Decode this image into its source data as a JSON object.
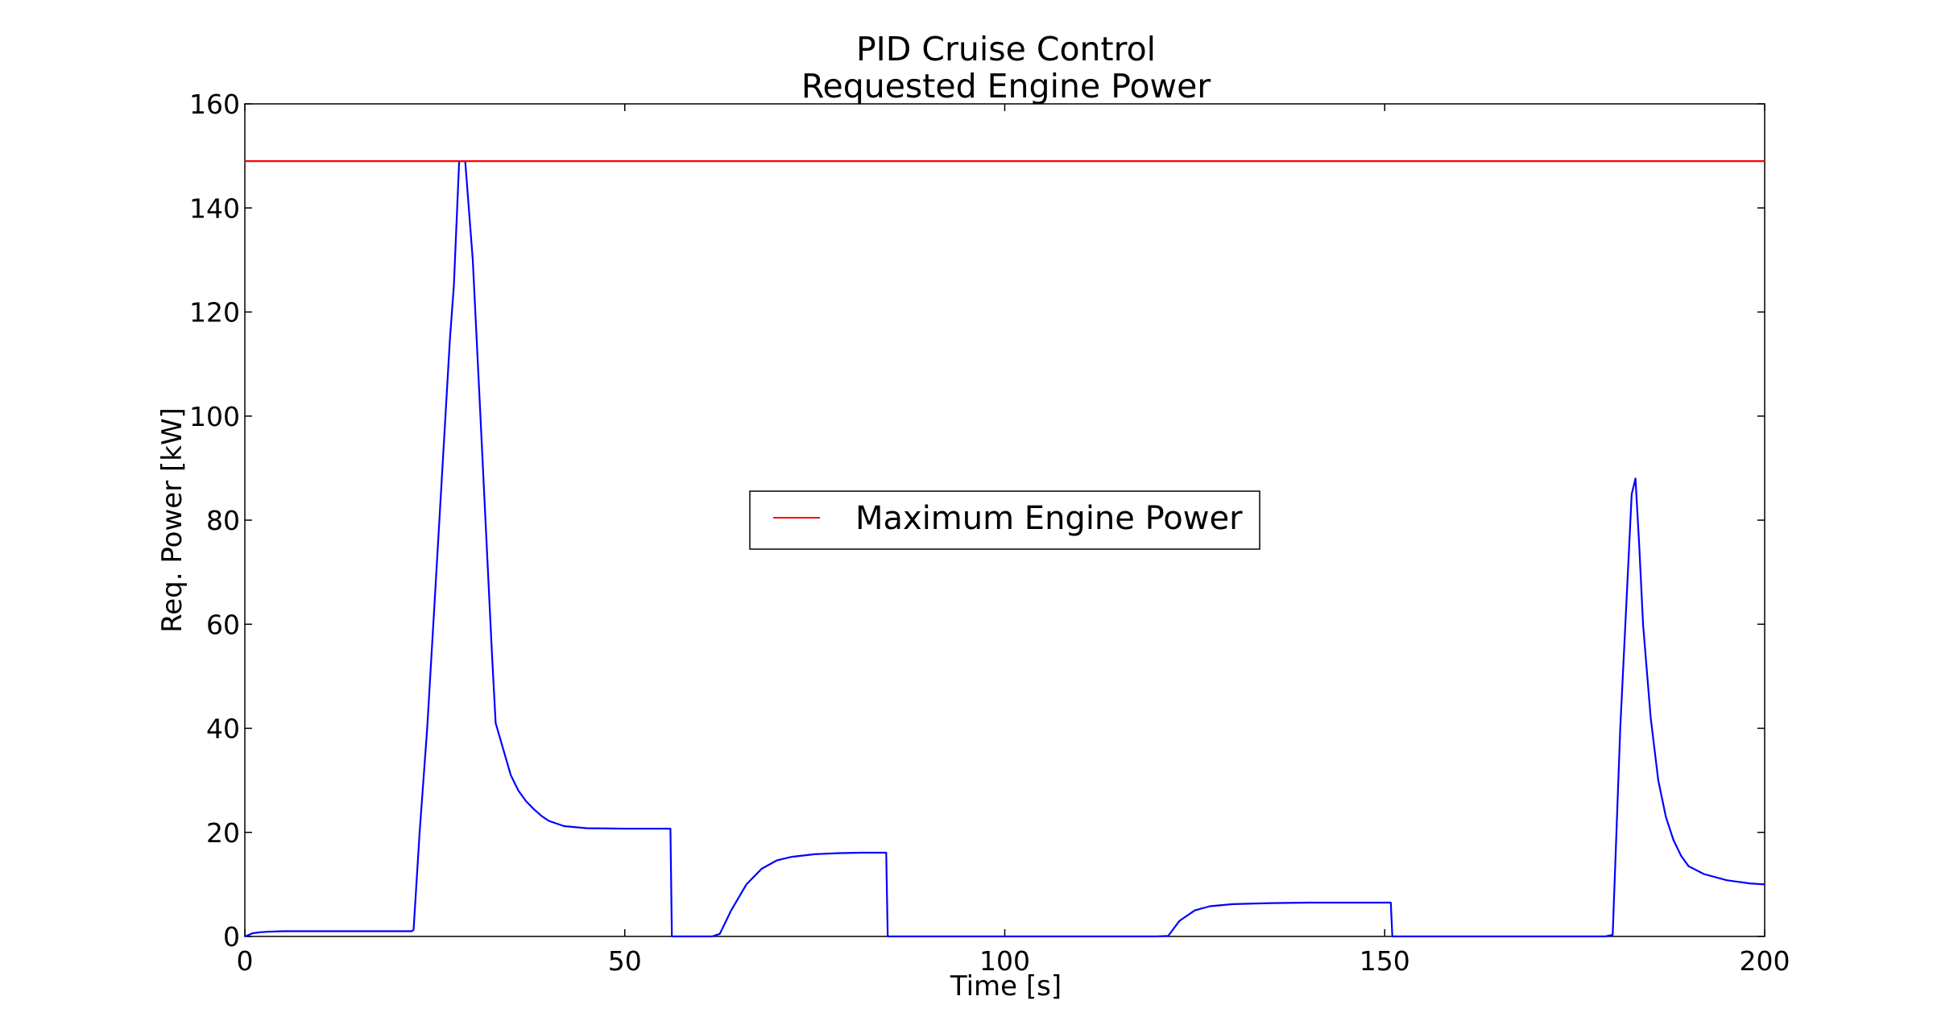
{
  "chart_data": {
    "type": "line",
    "title": "PID Cruise Control",
    "subtitle": "Requested Engine Power",
    "xlabel": "Time [s]",
    "ylabel": "Req. Power [kW]",
    "xlim": [
      0,
      200
    ],
    "ylim": [
      0,
      160
    ],
    "x_ticks": [
      "0",
      "50",
      "100",
      "150",
      "200"
    ],
    "y_ticks": [
      "0",
      "20",
      "40",
      "60",
      "80",
      "100",
      "120",
      "140",
      "160"
    ],
    "grid": false,
    "legend_position": "center",
    "series": [
      {
        "color": "#0000ff",
        "x": [
          0,
          0.5,
          1,
          2,
          3,
          5,
          10,
          15,
          20,
          22,
          22.2,
          23,
          24,
          25,
          26,
          27,
          27.5,
          28.2,
          29,
          30,
          31,
          32,
          32.5,
          33,
          34,
          35,
          36,
          37,
          38,
          39,
          40,
          42,
          45,
          50,
          55,
          56,
          56.2,
          57,
          60,
          61.5,
          62.5,
          64,
          66,
          68,
          70,
          72,
          75,
          78,
          81,
          84,
          84.4,
          84.6,
          90,
          100,
          110,
          120,
          121.5,
          123,
          125,
          127,
          130,
          135,
          140,
          145,
          150.5,
          150.8,
          151,
          160,
          170,
          179,
          180,
          181,
          182,
          182.5,
          183,
          183.5,
          184,
          185,
          186,
          187,
          188,
          189,
          190,
          192,
          195,
          198,
          200
        ],
        "y": [
          0,
          0.3,
          0.6,
          0.8,
          0.9,
          1,
          1,
          1,
          1,
          1,
          1.3,
          20,
          40,
          65,
          90,
          115,
          125,
          149,
          149,
          130,
          100,
          70,
          55,
          41,
          36,
          31,
          28,
          26,
          24.5,
          23.2,
          22.2,
          21.2,
          20.8,
          20.7,
          20.7,
          20.7,
          0,
          0,
          0,
          0,
          0.5,
          5,
          10,
          13,
          14.6,
          15.3,
          15.8,
          16,
          16.1,
          16.1,
          16.1,
          0,
          0,
          0,
          0,
          0,
          0.1,
          3,
          5,
          5.8,
          6.2,
          6.4,
          6.5,
          6.5,
          6.5,
          6.5,
          0,
          0,
          0,
          0,
          0.3,
          40,
          70,
          85,
          88,
          75,
          60,
          42,
          30,
          23,
          18.5,
          15.5,
          13.5,
          12,
          10.8,
          10.2,
          10
        ],
        "values_note": ""
      },
      {
        "name": "Maximum Engine Power",
        "color": "#ff0000",
        "x": [
          0,
          200
        ],
        "y": [
          149,
          149
        ]
      }
    ]
  }
}
